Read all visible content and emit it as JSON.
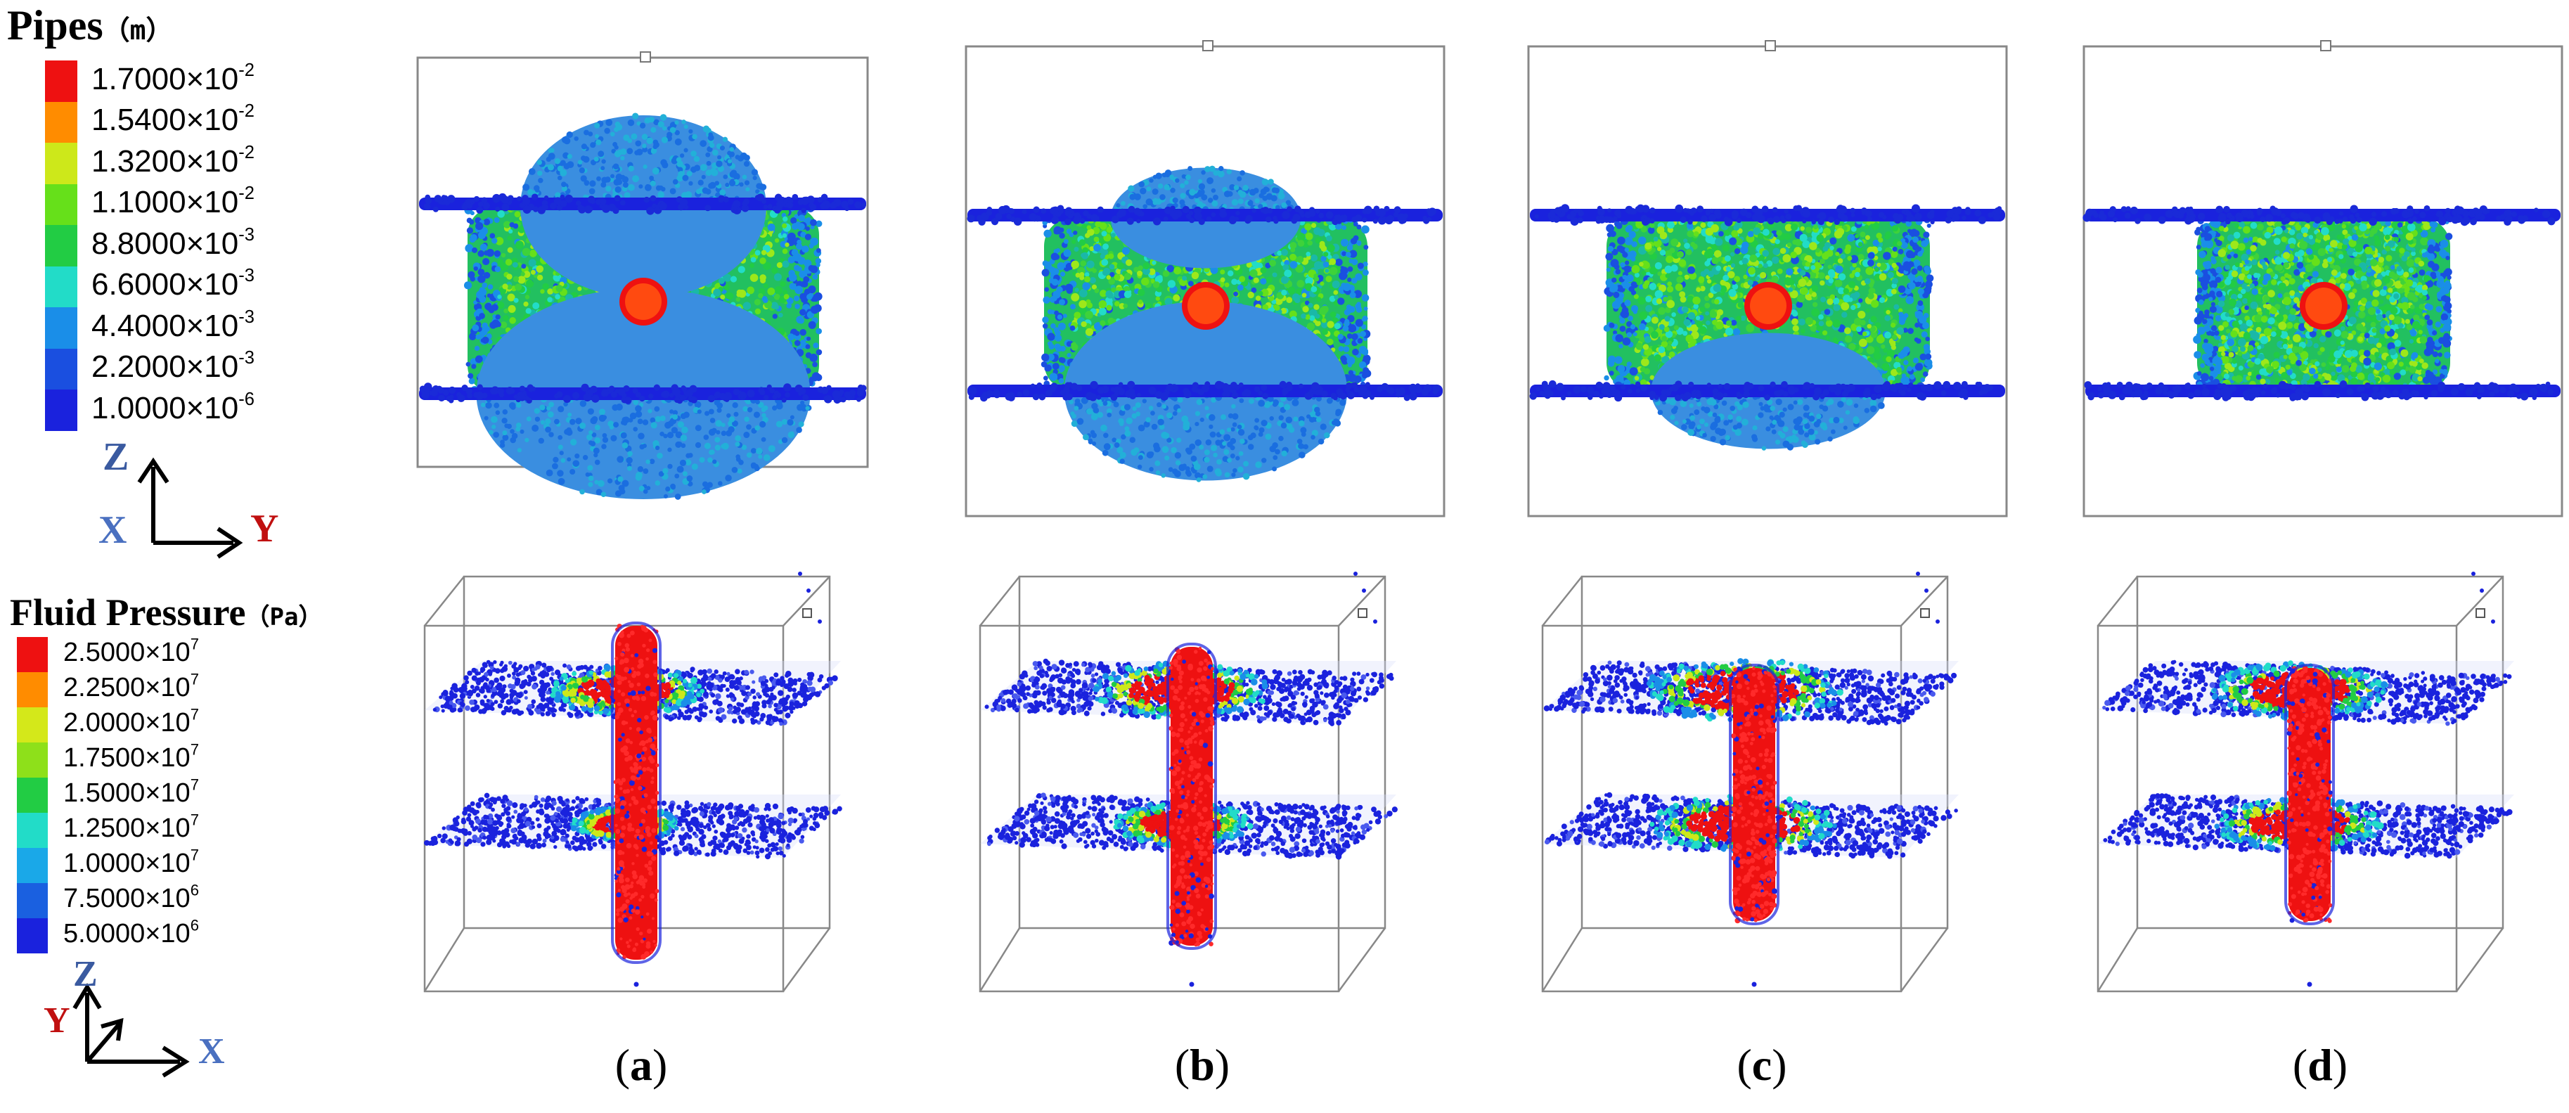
{
  "pipes_legend": {
    "title": "Pipes",
    "unit": "（m）",
    "colors": [
      "#ee1111",
      "#ff8c00",
      "#cde81a",
      "#66e01a",
      "#22cc44",
      "#22dcc8",
      "#1a8ee8",
      "#1a4fe0",
      "#1a22dd"
    ],
    "entries": [
      {
        "mantissa": "1.7000",
        "exponent": "-2"
      },
      {
        "mantissa": "1.5400",
        "exponent": "-2"
      },
      {
        "mantissa": "1.3200",
        "exponent": "-2"
      },
      {
        "mantissa": "1.1000",
        "exponent": "-2"
      },
      {
        "mantissa": "8.8000",
        "exponent": "-3"
      },
      {
        "mantissa": "6.6000",
        "exponent": "-3"
      },
      {
        "mantissa": "4.4000",
        "exponent": "-3"
      },
      {
        "mantissa": "2.2000",
        "exponent": "-3"
      },
      {
        "mantissa": "1.0000",
        "exponent": "-6"
      }
    ]
  },
  "pipes_axes": {
    "vertical": "Z",
    "out_of_plane": "X",
    "horizontal": "Y"
  },
  "pressure_legend": {
    "title": "Fluid Pressure",
    "unit": "（Pa）",
    "colors": [
      "#ee1111",
      "#ff8c00",
      "#d4e81a",
      "#8ee01a",
      "#22cc44",
      "#22dcc8",
      "#1aa8e8",
      "#1a60e0",
      "#1a22dd"
    ],
    "entries": [
      {
        "mantissa": "2.5000",
        "exponent": "7"
      },
      {
        "mantissa": "2.2500",
        "exponent": "7"
      },
      {
        "mantissa": "2.0000",
        "exponent": "7"
      },
      {
        "mantissa": "1.7500",
        "exponent": "7"
      },
      {
        "mantissa": "1.5000",
        "exponent": "7"
      },
      {
        "mantissa": "1.2500",
        "exponent": "7"
      },
      {
        "mantissa": "1.0000",
        "exponent": "7"
      },
      {
        "mantissa": "7.5000",
        "exponent": "6"
      },
      {
        "mantissa": "5.0000",
        "exponent": "6"
      }
    ]
  },
  "pressure_axes": {
    "vertical": "Z",
    "diagonal": "Y",
    "horizontal": "X"
  },
  "times_sign": "×10",
  "panels": [
    {
      "label": "a",
      "upper_lobe": 1.0,
      "lower_lobe": 1.0
    },
    {
      "label": "b",
      "upper_lobe": 0.55,
      "lower_lobe": 0.85
    },
    {
      "label": "c",
      "upper_lobe": 0.0,
      "lower_lobe": 0.55
    },
    {
      "label": "d",
      "upper_lobe": 0.0,
      "lower_lobe": 0.0
    }
  ]
}
